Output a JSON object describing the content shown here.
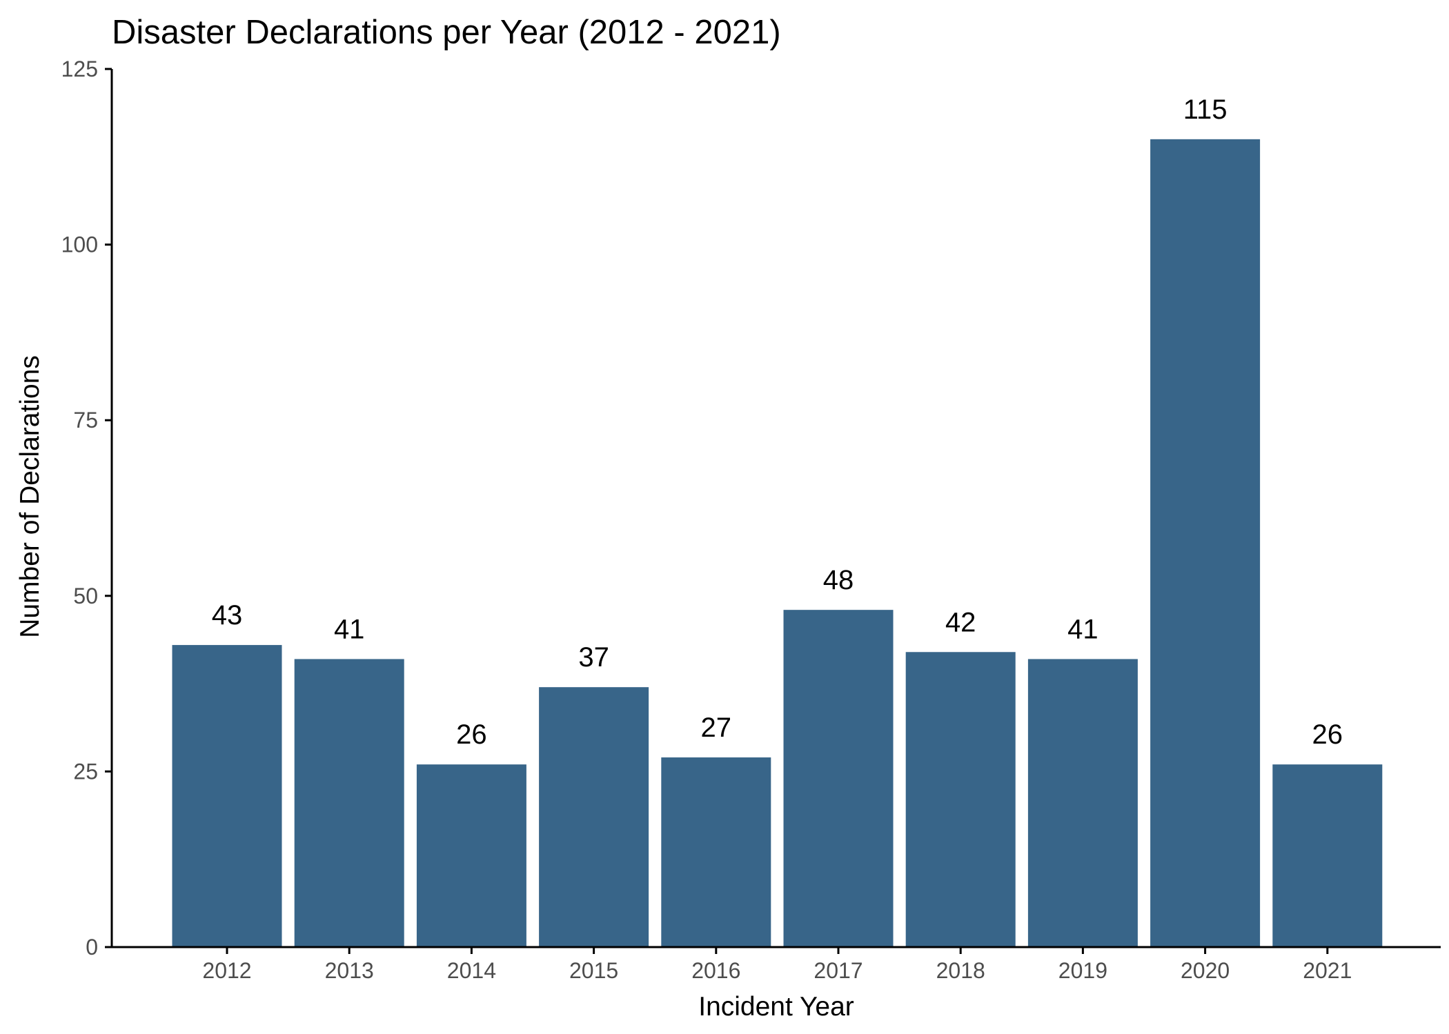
{
  "chart_data": {
    "type": "bar",
    "title": "Disaster Declarations per Year (2012 - 2021)",
    "xlabel": "Incident Year",
    "ylabel": "Number of Declarations",
    "categories": [
      "2012",
      "2013",
      "2014",
      "2015",
      "2016",
      "2017",
      "2018",
      "2019",
      "2020",
      "2021"
    ],
    "values": [
      43,
      41,
      26,
      37,
      27,
      48,
      42,
      41,
      115,
      26
    ],
    "data_labels": [
      "43",
      "41",
      "26",
      "37",
      "27",
      "48",
      "42",
      "41",
      "115",
      "26"
    ],
    "ylim": [
      0,
      125
    ],
    "yticks": [
      0,
      25,
      50,
      75,
      100,
      125
    ],
    "ytick_labels": [
      "0",
      "25",
      "50",
      "75",
      "100",
      "125"
    ],
    "grid": false,
    "legend": "none",
    "colors": {
      "bar": "#386589",
      "axis": "#000000",
      "tick_label": "#4d4d4d"
    }
  }
}
